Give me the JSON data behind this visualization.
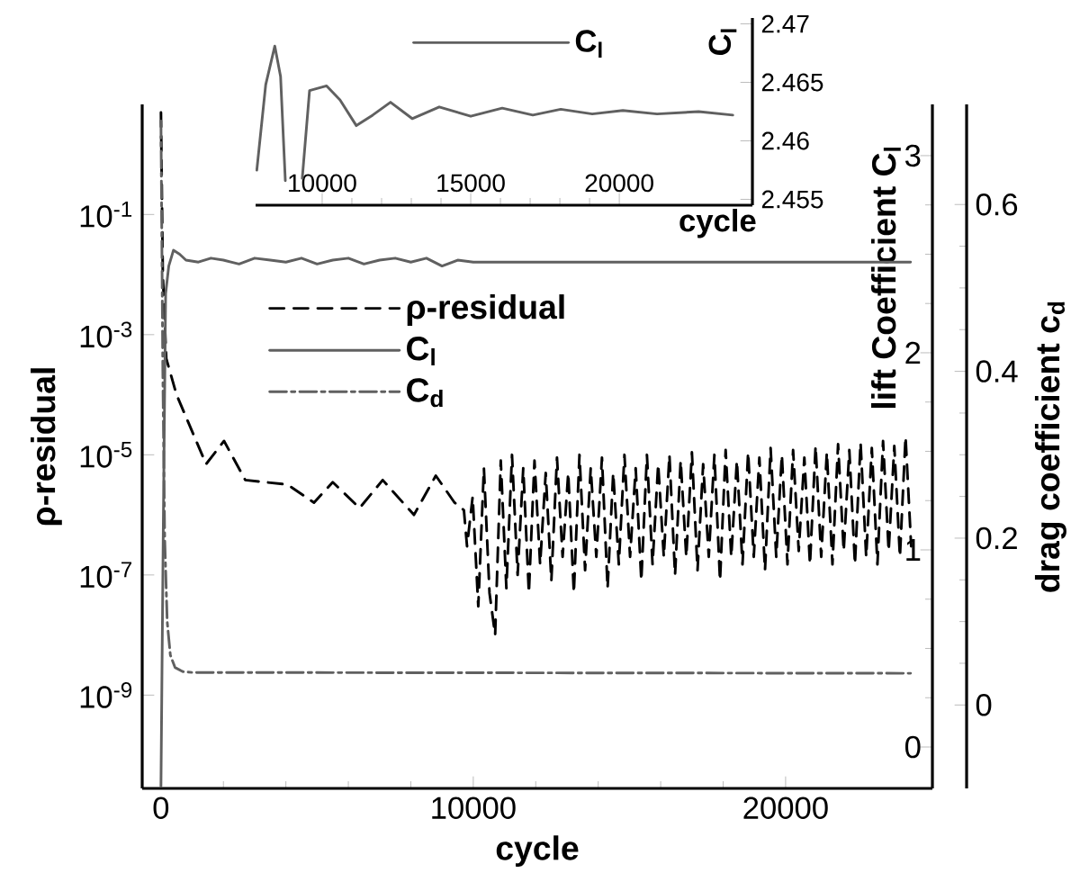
{
  "chart_data": [
    {
      "type": "line",
      "xlabel": "cycle",
      "ylabel": "ρ-residual",
      "y2label": "lift Coefficient C$_{l}$",
      "y3label": "drag coefficient c$_{d}$",
      "xlim": [
        -600,
        24700
      ],
      "xticks": [
        0,
        10000,
        20000
      ],
      "ylim": [
        2.8e-11,
        6.8
      ],
      "yticks": [
        {
          "value": 0.1,
          "label": "10$^{-1}$"
        },
        {
          "value": 0.001,
          "label": "10$^{-3}$"
        },
        {
          "value": 1e-05,
          "label": "10$^{-5}$"
        },
        {
          "value": 1e-07,
          "label": "10$^{-7}$"
        },
        {
          "value": 1e-09,
          "label": "10$^{-9}$"
        }
      ],
      "y2lim": [
        -0.21,
        3.26
      ],
      "y2ticks": [
        0,
        1,
        2,
        3
      ],
      "y3lim": [
        -0.1,
        0.72
      ],
      "y3ticks": [
        0,
        0.2,
        0.4,
        0.6
      ],
      "log": "y",
      "legend": "top",
      "series": [
        {
          "name": "ρ-residual",
          "color": "#000000",
          "line_style": "dashed",
          "x": [
            0,
            60,
            170,
            500,
            1150,
            1445,
            2020,
            2700,
            4050,
            4900,
            5500,
            6360,
            7100,
            8100,
            8800,
            9400,
            9700,
            9800,
            9980,
            10160,
            10340,
            10520,
            10700,
            10880,
            11060,
            11240,
            11420,
            11600,
            11780,
            11960,
            12140,
            12320,
            12500,
            12680,
            12860,
            13040,
            13220,
            13400,
            13580,
            13760,
            13940,
            14120,
            14300,
            14480,
            14660,
            14840,
            15020,
            15200,
            15380,
            15560,
            15740,
            15920,
            16100,
            16280,
            16460,
            16640,
            16820,
            17000,
            17180,
            17360,
            17540,
            17720,
            17900,
            18080,
            18260,
            18440,
            18620,
            18800,
            18980,
            19160,
            19340,
            19520,
            19700,
            19880,
            20060,
            20240,
            20420,
            20600,
            20780,
            20960,
            21140,
            21320,
            21500,
            21680,
            21860,
            22040,
            22220,
            22400,
            22580,
            22760,
            22940,
            23120,
            23300,
            23480,
            23660,
            23840,
            24020
          ],
          "values": [
            5,
            0.01,
            0.0004,
            0.0001,
            1.6e-05,
            7e-06,
            1.7e-05,
            3.8e-06,
            3.2e-06,
            1.6e-06,
            3.5e-06,
            1.3e-06,
            3.8e-06,
            1e-06,
            4.5e-06,
            1.6e-06,
            1.2e-06,
            3e-07,
            2e-06,
            3e-08,
            6e-06,
            5e-08,
            1e-08,
            8e-06,
            6e-08,
            1e-05,
            1e-07,
            6e-06,
            5e-08,
            8e-06,
            1.5e-07,
            5e-06,
            8e-08,
            9e-06,
            2e-07,
            5e-06,
            5e-08,
            1e-05,
            1.2e-07,
            6e-06,
            2e-07,
            9e-06,
            6e-08,
            5e-06,
            1.5e-07,
            1e-05,
            2e-07,
            6e-06,
            8e-08,
            1e-05,
            1.5e-07,
            7e-06,
            2e-07,
            1e-05,
            1e-07,
            8e-06,
            2e-07,
            1.1e-05,
            1.2e-07,
            7e-06,
            2e-07,
            1e-05,
            8e-08,
            1.2e-05,
            2e-07,
            8e-06,
            1.5e-07,
            1.1e-05,
            2e-07,
            9e-06,
            1.2e-07,
            1.3e-05,
            2e-07,
            1e-05,
            1.5e-07,
            1.2e-05,
            2.5e-07,
            9e-06,
            1.5e-07,
            1.4e-05,
            2e-07,
            1.1e-05,
            1.5e-07,
            1.5e-05,
            2.5e-07,
            1.2e-05,
            1.5e-07,
            1.6e-05,
            2e-07,
            1.3e-05,
            1.5e-07,
            1.7e-05,
            2.5e-07,
            1.4e-05,
            2e-07,
            2e-05,
            3e-07
          ]
        },
        {
          "name": "C$_{l}$",
          "color": "#606060",
          "line_style": "solid",
          "axis": "y2",
          "x": [
            0,
            80,
            150,
            250,
            400,
            600,
            800,
            1200,
            1600,
            2000,
            2500,
            3000,
            3500,
            4000,
            4500,
            5000,
            5500,
            6000,
            6500,
            7000,
            7500,
            8000,
            8500,
            9000,
            9500,
            10000,
            24000
          ],
          "values": [
            -0.2,
            1.2,
            2.3,
            2.44,
            2.52,
            2.5,
            2.47,
            2.46,
            2.48,
            2.47,
            2.45,
            2.48,
            2.47,
            2.46,
            2.48,
            2.45,
            2.47,
            2.48,
            2.45,
            2.47,
            2.48,
            2.46,
            2.48,
            2.44,
            2.47,
            2.46,
            2.46
          ]
        },
        {
          "name": "C$_{d}$",
          "color": "#606060",
          "line_style": "dashdot",
          "axis": "y3",
          "x": [
            0,
            60,
            120,
            200,
            300,
            450,
            700,
            1000,
            24000
          ],
          "values": [
            0.7,
            0.4,
            0.2,
            0.1,
            0.06,
            0.045,
            0.04,
            0.039,
            0.038
          ]
        }
      ]
    },
    {
      "type": "line",
      "xlabel": "cycle",
      "ylabel": "C$_{l}$",
      "xlim": [
        7760,
        24480
      ],
      "xticks": [
        10000,
        15000,
        20000
      ],
      "ylim": [
        2.4545,
        2.4705
      ],
      "yticks": [
        2.455,
        2.46,
        2.465,
        2.47
      ],
      "legend": "top",
      "series": [
        {
          "name": "C$_{l}$",
          "color": "#606060",
          "line_style": "solid",
          "x": [
            7800,
            8100,
            8406,
            8600,
            8760,
            9000,
            9330,
            9575,
            10150,
            10600,
            11150,
            11700,
            12300,
            13030,
            13940,
            15000,
            16060,
            17090,
            18030,
            19090,
            20120,
            21270,
            22670,
            23820
          ],
          "values": [
            2.4575,
            2.4648,
            2.4681,
            2.4655,
            2.4566,
            null,
            2.4568,
            2.4643,
            2.4647,
            2.4635,
            2.4613,
            2.4622,
            2.4633,
            2.4619,
            2.4629,
            2.4621,
            2.4628,
            2.4622,
            2.4627,
            2.4623,
            2.4626,
            2.4623,
            2.4625,
            2.4622
          ]
        }
      ]
    }
  ]
}
